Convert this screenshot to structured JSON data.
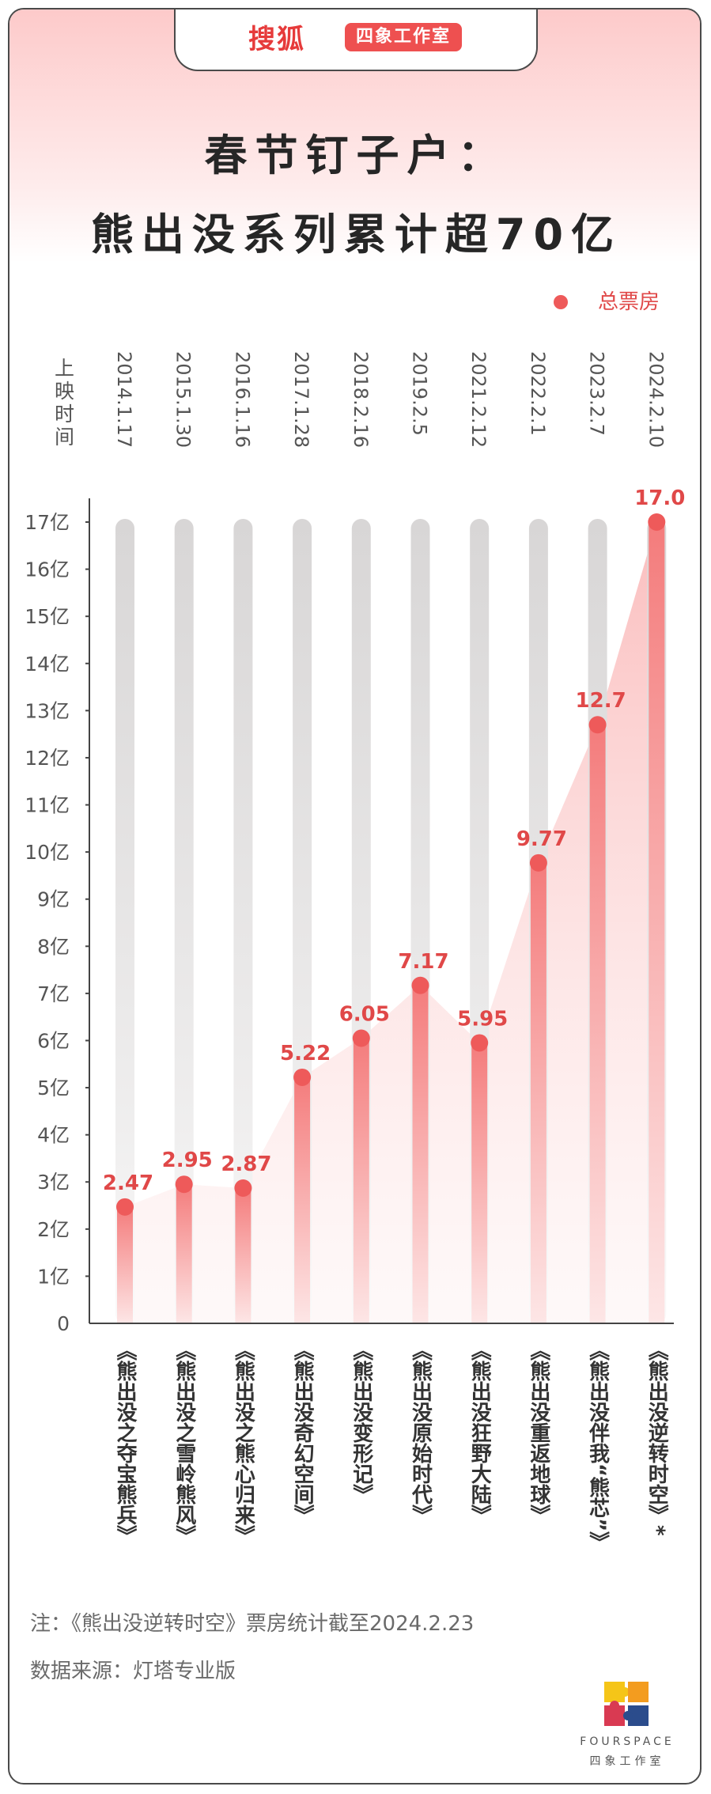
{
  "header": {
    "brand_name": "搜狐",
    "brand_badge": "四象工作室",
    "title_line_1": "春节钉子户：",
    "title_line_2": "熊出没系列累计超70亿"
  },
  "colors": {
    "accent": "#ee5a5a",
    "label_red": "#e04848",
    "track_gray": "#dcdada",
    "axis": "#444444"
  },
  "chart_data": {
    "type": "bar",
    "xlabel": "",
    "ylabel": "",
    "ylim": [
      0,
      17
    ],
    "y_ticks": [
      "0",
      "1亿",
      "2亿",
      "3亿",
      "4亿",
      "5亿",
      "6亿",
      "7亿",
      "8亿",
      "9亿",
      "10亿",
      "11亿",
      "12亿",
      "13亿",
      "14亿",
      "15亿",
      "16亿",
      "17亿"
    ],
    "date_header": "上映时间",
    "legend": {
      "label": "总票房",
      "position": "top-right"
    },
    "categories": [
      "《熊出没之夺宝熊兵》",
      "《熊出没之雪岭熊风》",
      "《熊出没之熊心归来》",
      "《熊出没奇幻空间》",
      "《熊出没变形记》",
      "《熊出没原始时代》",
      "《熊出没狂野大陆》",
      "《熊出没重返地球》",
      "《熊出没伴我“熊芯”》",
      "《熊出没逆转时空》*"
    ],
    "release_dates": [
      "2014.1.17",
      "2015.1.30",
      "2016.1.16",
      "2017.1.28",
      "2018.2.16",
      "2019.2.5",
      "2021.2.12",
      "2022.2.1",
      "2023.2.7",
      "2024.2.10"
    ],
    "series": [
      {
        "name": "总票房",
        "values": [
          2.47,
          2.95,
          2.87,
          5.22,
          6.05,
          7.17,
          5.95,
          9.77,
          12.7,
          17.0
        ],
        "labels": [
          "2.47",
          "2.95",
          "2.87",
          "5.22",
          "6.05",
          "7.17",
          "5.95",
          "9.77",
          "12.7",
          "17.0"
        ]
      }
    ]
  },
  "notes": {
    "note_1": "注：《熊出没逆转时空》票房统计截至2024.2.23",
    "note_2": "数据来源：灯塔专业版"
  },
  "logo": {
    "en": "FOURSPACE",
    "cn": "四象工作室"
  }
}
